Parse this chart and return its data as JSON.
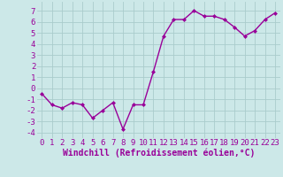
{
  "x": [
    0,
    1,
    2,
    3,
    4,
    5,
    6,
    7,
    8,
    9,
    10,
    11,
    12,
    13,
    14,
    15,
    16,
    17,
    18,
    19,
    20,
    21,
    22,
    23
  ],
  "y": [
    -0.5,
    -1.5,
    -1.8,
    -1.3,
    -1.5,
    -2.7,
    -2.0,
    -1.3,
    -3.7,
    -1.5,
    -1.5,
    1.5,
    4.7,
    6.2,
    6.2,
    7.0,
    6.5,
    6.5,
    6.2,
    5.5,
    4.7,
    5.2,
    6.2,
    6.8
  ],
  "line_color": "#990099",
  "marker": "D",
  "marker_size": 2,
  "bg_color": "#cce8e8",
  "grid_color": "#aacccc",
  "xlabel": "Windchill (Refroidissement éolien,°C)",
  "xlabel_color": "#990099",
  "ylabel_ticks": [
    -4,
    -3,
    -2,
    -1,
    0,
    1,
    2,
    3,
    4,
    5,
    6,
    7
  ],
  "xlim": [
    -0.5,
    23.5
  ],
  "ylim": [
    -4.5,
    7.8
  ],
  "tick_color": "#990099",
  "tick_fontsize": 6.5,
  "xlabel_fontsize": 7.0,
  "linewidth": 1.0
}
